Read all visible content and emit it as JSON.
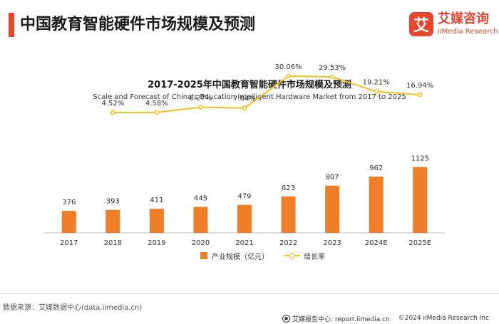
{
  "header": {
    "title": "中国教育智能硬件市场规模及预测",
    "accent_color": "#e8452c"
  },
  "logo": {
    "mark": "艾",
    "name_cn": "艾媒咨询",
    "name_en": "iiMedia Research",
    "color": "#e8452c"
  },
  "chart_data": {
    "type": "bar",
    "title": "2017-2025年中国教育智能硬件市场规模及预测",
    "subtitle": "Scale and Forecast of China's Education Intelligent Hardware Market from 2017 to 2025",
    "categories": [
      "2017",
      "2018",
      "2019",
      "2020",
      "2021",
      "2022",
      "2023",
      "2024E",
      "2025E"
    ],
    "series": [
      {
        "name": "产业规模（亿元）",
        "type": "bar",
        "color": "#f07e26",
        "values": [
          376,
          393,
          411,
          445,
          479,
          623,
          807,
          962,
          1125
        ],
        "labels": [
          "376",
          "393",
          "411",
          "445",
          "479",
          "623",
          "807",
          "962",
          "1125"
        ]
      },
      {
        "name": "增长率",
        "type": "line",
        "color": "#f5c21b",
        "x": [
          "2018",
          "2019",
          "2020",
          "2021",
          "2022",
          "2023",
          "2024E",
          "2025E"
        ],
        "values": [
          4.52,
          4.58,
          8.27,
          7.64,
          30.06,
          29.53,
          19.21,
          16.94
        ],
        "labels": [
          "4.52%",
          "4.58%",
          "8.27%",
          "7.64%",
          "30.06%",
          "29.53%",
          "19.21%",
          "16.94%"
        ]
      }
    ],
    "bar_axis_max": 2800,
    "line_axis_range": [
      -80,
      35
    ],
    "legend_position": "bottom"
  },
  "footer": {
    "source": "数据来源：艾媒数据中心(data.iimedia.cn)",
    "report_site": "艾媒报告中心: report.iimedia.cn",
    "copyright": "©2024  iiMedia Research  Inc"
  }
}
